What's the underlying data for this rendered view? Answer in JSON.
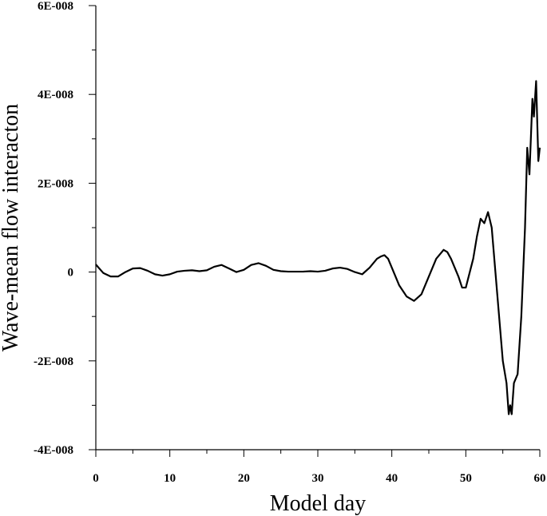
{
  "chart_data": {
    "type": "line",
    "title": "",
    "xlabel": "Model day",
    "ylabel": "Wave-mean flow interacton",
    "xlim": [
      0,
      60
    ],
    "ylim": [
      -4e-08,
      6e-08
    ],
    "grid": false,
    "x_major_ticks": [
      0,
      10,
      20,
      30,
      40,
      50,
      60
    ],
    "x_tick_labels": [
      "0",
      "10",
      "20",
      "30",
      "40",
      "50",
      "60"
    ],
    "x_minor_step": 5,
    "y_major_ticks": [
      -4e-08,
      -2e-08,
      0,
      2e-08,
      4e-08,
      6e-08
    ],
    "y_tick_labels": [
      "-4E-008",
      "-2E-008",
      "0",
      "2E-008",
      "4E-008",
      "6E-008"
    ],
    "y_minor_step": 1e-08,
    "series": [
      {
        "x": [
          0,
          1,
          2,
          3,
          4,
          5,
          6,
          7,
          8,
          9,
          10,
          11,
          12,
          13,
          14,
          15,
          16,
          17,
          18,
          19,
          20,
          21,
          22,
          23,
          24,
          25,
          26,
          27,
          28,
          29,
          30,
          31,
          32,
          33,
          34,
          35,
          36,
          37,
          38,
          38.5,
          39,
          39.5,
          40,
          41,
          42,
          43,
          44,
          45,
          46,
          47,
          47.5,
          48,
          49,
          49.5,
          50,
          51,
          51.5,
          52,
          52.5,
          53,
          53.5,
          54,
          54.5,
          55,
          55.5,
          55.8,
          56,
          56.2,
          56.5,
          57,
          57.5,
          58,
          58.3,
          58.6,
          59,
          59.2,
          59.5,
          59.8,
          60
        ],
        "y": [
          1.7e-09,
          -2e-10,
          -1e-09,
          -1e-09,
          0,
          8e-10,
          9e-10,
          3e-10,
          -5e-10,
          -8e-10,
          -5e-10,
          1e-10,
          3e-10,
          4e-10,
          2e-10,
          4e-10,
          1.2e-09,
          1.6e-09,
          8e-10,
          0,
          5e-10,
          1.6e-09,
          2e-09,
          1.4e-09,
          5e-10,
          2e-10,
          1e-10,
          1e-10,
          1e-10,
          2e-10,
          1e-10,
          3e-10,
          8e-10,
          1e-09,
          7e-10,
          0,
          -5e-10,
          1e-09,
          3e-09,
          3.5e-09,
          3.8e-09,
          3e-09,
          1e-09,
          -3e-09,
          -5.5e-09,
          -6.5e-09,
          -5e-09,
          -1e-09,
          3e-09,
          5e-09,
          4.5e-09,
          3e-09,
          -1e-09,
          -3.5e-09,
          -3.5e-09,
          3e-09,
          8e-09,
          1.2e-08,
          1.1e-08,
          1.35e-08,
          1e-08,
          0,
          -1e-08,
          -2e-08,
          -2.5e-08,
          -3.2e-08,
          -3e-08,
          -3.2e-08,
          -2.5e-08,
          -2.3e-08,
          -1e-08,
          1e-08,
          2.8e-08,
          2.2e-08,
          3.9e-08,
          3.5e-08,
          4.3e-08,
          2.5e-08,
          2.8e-08
        ]
      }
    ]
  }
}
